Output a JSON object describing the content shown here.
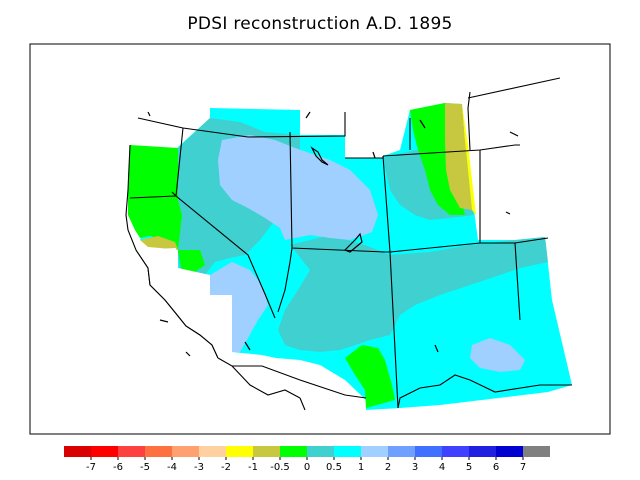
{
  "title": "PDSI reconstruction A.D. 1895",
  "legend": {
    "colors": [
      "#d80000",
      "#ff0000",
      "#ff4040",
      "#ff7040",
      "#ffa070",
      "#ffd0a0",
      "#ffff00",
      "#c8c840",
      "#00ff00",
      "#40d0d0",
      "#00ffff",
      "#a0d0ff",
      "#70a0ff",
      "#4070ff",
      "#4040ff",
      "#2020e0",
      "#0000d0",
      "#808080"
    ],
    "labels": [
      "-7",
      "-6",
      "-5",
      "-4",
      "-3",
      "-2",
      "-1",
      "-0.5",
      "0",
      "0.5",
      "1",
      "2",
      "3",
      "4",
      "5",
      "6",
      "7"
    ]
  },
  "map": {
    "region": "Western United States",
    "fill_colors": {
      "dry_mild": "#c8c840",
      "dry_light": "#ffff00",
      "near_normal": "#00ff00",
      "wet_light": "#40d0d0",
      "wet_moderate": "#00ffff",
      "wet_strong": "#a0d0ff"
    }
  }
}
